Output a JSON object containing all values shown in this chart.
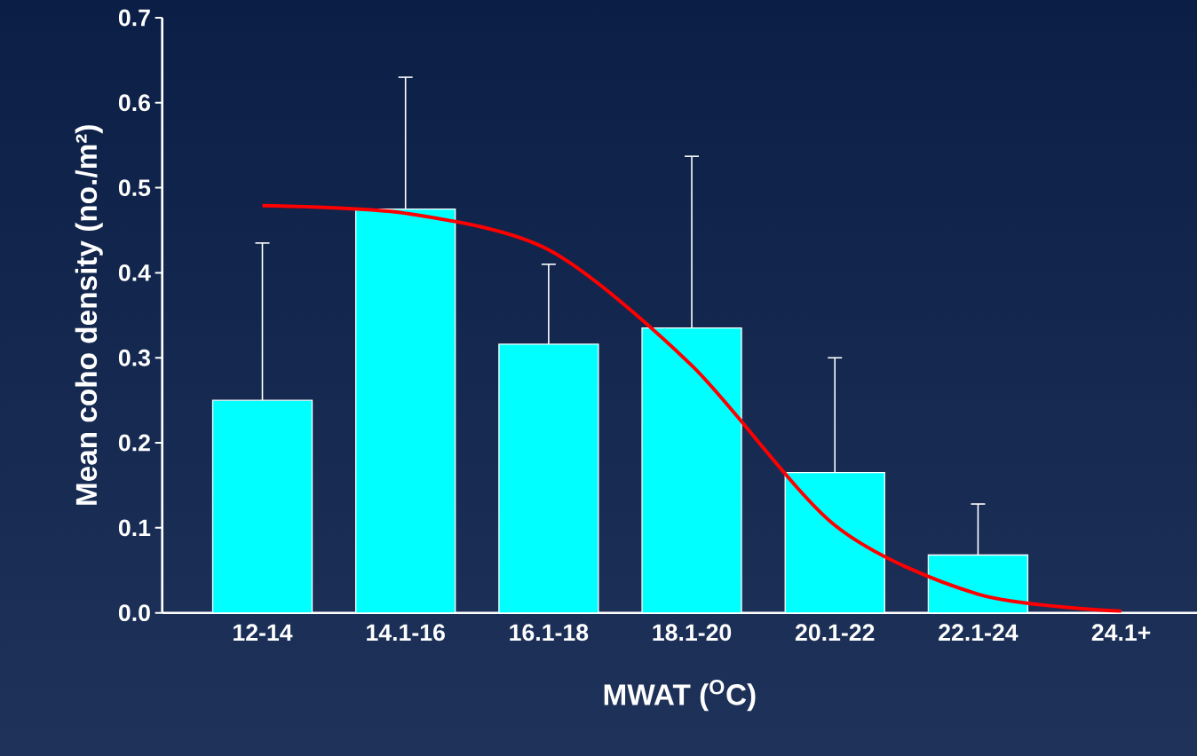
{
  "chart_data": {
    "type": "bar",
    "xlabel": "MWAT ($^{O}$C)",
    "ylabel": "Mean coho density (no./m²)",
    "categories": [
      "12-14",
      "14.1-16",
      "16.1-18",
      "18.1-20",
      "20.1-22",
      "22.1-24",
      "24.1+"
    ],
    "series": [
      {
        "color": "#00ffff",
        "values": [
          0.25,
          0.475,
          0.316,
          0.335,
          0.165,
          0.068,
          null
        ],
        "errors": [
          [
            0.25,
            0.435
          ],
          [
            0.475,
            0.63
          ],
          [
            0.316,
            0.41
          ],
          [
            0.335,
            0.537
          ],
          [
            0.165,
            0.3
          ],
          [
            0.068,
            0.128
          ],
          null
        ]
      },
      {
        "type": "line",
        "color": "#ff0000",
        "values": [
          0.479,
          0.47,
          0.427,
          0.291,
          0.103,
          0.022,
          0.002
        ]
      }
    ],
    "ylim": [
      0,
      0.7
    ],
    "yticks": [
      {
        "value": 0,
        "label": "0.0"
      },
      0.1,
      0.2,
      0.3,
      0.4,
      0.5,
      0.6,
      0.7
    ],
    "grid": false
  }
}
